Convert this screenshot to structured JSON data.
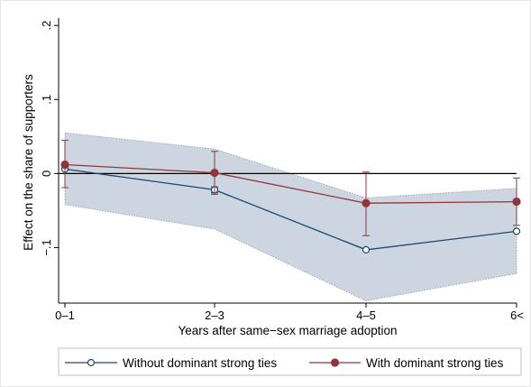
{
  "chart_data": {
    "type": "line",
    "title": "",
    "xlabel": "Years after same−sex marriage adoption",
    "ylabel": "Effect on the share of supporters",
    "categories": [
      "0–1",
      "2–3",
      "4–5",
      "6<"
    ],
    "ylim": [
      -0.175,
      0.21
    ],
    "yticks": [
      {
        "value": -0.1,
        "label": "−.1"
      },
      {
        "value": 0,
        "label": "0"
      },
      {
        "value": 0.1,
        "label": ".1"
      },
      {
        "value": 0.2,
        "label": ".2"
      }
    ],
    "reference_line": 0,
    "grid": false,
    "legend_position": "bottom",
    "band": {
      "series": "Without dominant strong ties",
      "lower": [
        -0.042,
        -0.075,
        -0.172,
        -0.135
      ],
      "upper": [
        0.055,
        0.033,
        -0.033,
        -0.02
      ]
    },
    "series": [
      {
        "name": "Without dominant strong ties",
        "values": [
          0.006,
          -0.022,
          -0.103,
          -0.078
        ],
        "marker": "hollow-circle",
        "color": "#1a476f",
        "error_low": [
          0.006,
          -0.026,
          -0.103,
          -0.078
        ],
        "error_high": [
          0.006,
          -0.018,
          -0.103,
          -0.078
        ]
      },
      {
        "name": "With dominant strong ties",
        "values": [
          0.012,
          0.001,
          -0.04,
          -0.038
        ],
        "marker": "filled-circle",
        "color": "#90353b",
        "error_low": [
          -0.019,
          -0.028,
          -0.084,
          -0.07
        ],
        "error_high": [
          0.045,
          0.03,
          0.002,
          -0.006
        ]
      }
    ]
  },
  "colors": {
    "band_fill": "#cdd6e0",
    "band_edge": "#9aa8ba",
    "zero_line": "#000000"
  }
}
